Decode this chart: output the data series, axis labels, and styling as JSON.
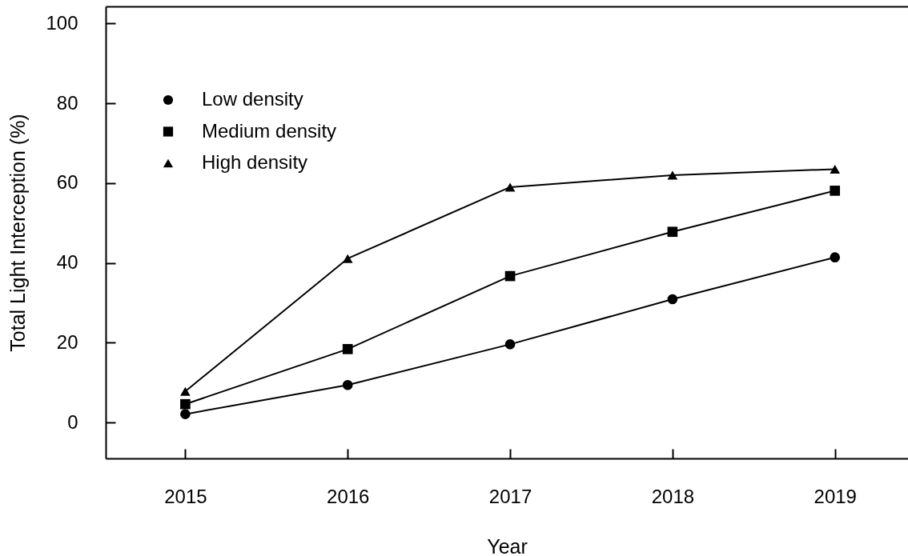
{
  "chart_data": {
    "type": "line",
    "xlabel": "Year",
    "ylabel": "Total Light Interception (%)",
    "x": [
      2015,
      2016,
      2017,
      2018,
      2019
    ],
    "xlim": [
      2014.51,
      2019.45
    ],
    "xticks": [
      2015,
      2016,
      2017,
      2018,
      2019
    ],
    "ylim": [
      -9,
      104.3
    ],
    "yticks": [
      0,
      20,
      40,
      60,
      80,
      100
    ],
    "grid": false,
    "legend": "top left",
    "line_style": "solid",
    "series": [
      {
        "name": "Low density",
        "color": "#000000",
        "marker": "circle",
        "values": [
          2.1,
          9.4,
          19.6,
          30.9,
          41.4
        ]
      },
      {
        "name": "Medium density",
        "color": "#000000",
        "marker": "square",
        "values": [
          4.6,
          18.4,
          36.7,
          47.8,
          58.1
        ]
      },
      {
        "name": "High density",
        "color": "#000000",
        "marker": "triangle",
        "values": [
          7.8,
          41.1,
          59.0,
          62.0,
          63.5
        ]
      }
    ]
  }
}
